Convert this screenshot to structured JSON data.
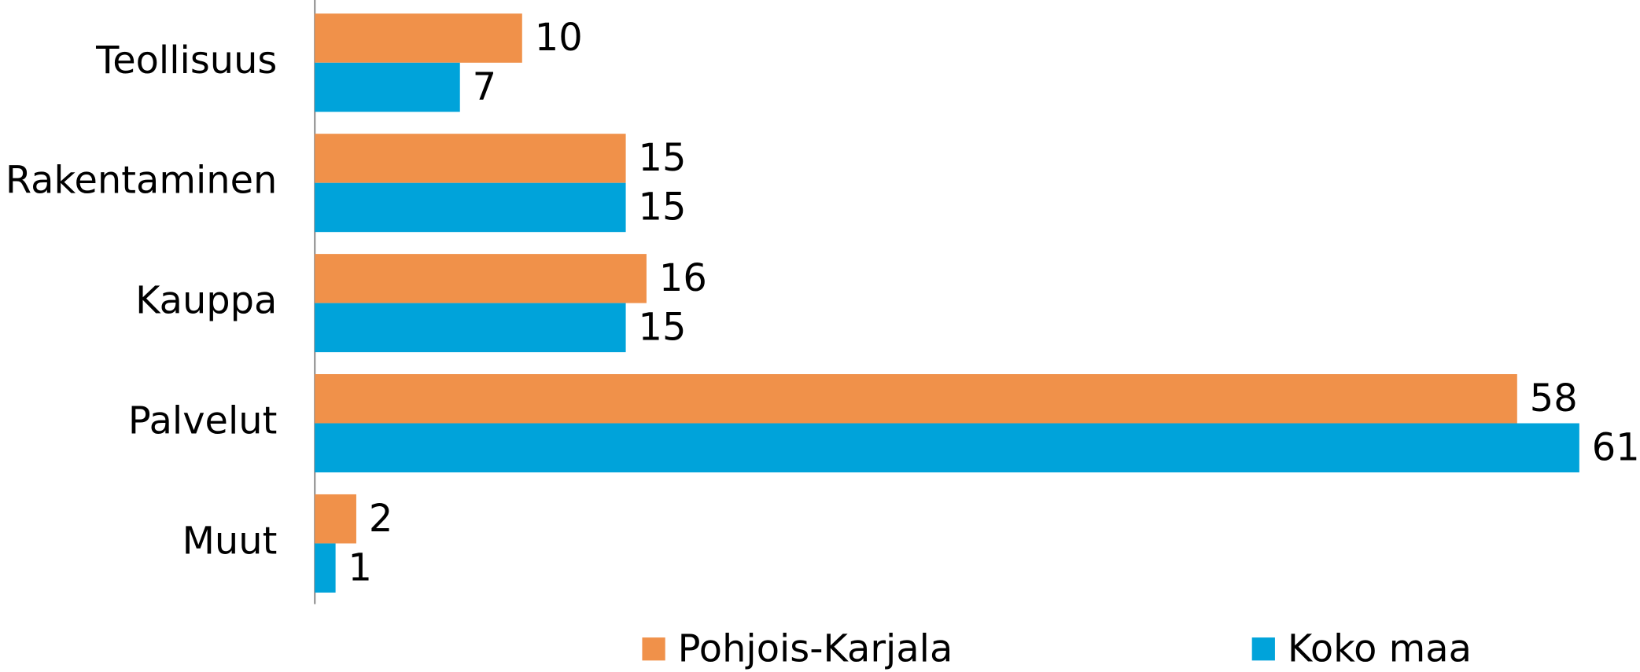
{
  "chart_data": {
    "type": "bar",
    "orientation": "horizontal",
    "categories": [
      "Teollisuus",
      "Rakentaminen",
      "Kauppa",
      "Palvelut",
      "Muut"
    ],
    "series": [
      {
        "name": "Pohjois-Karjala",
        "color": "#f0914a",
        "values": [
          10,
          15,
          16,
          58,
          2
        ]
      },
      {
        "name": "Koko maa",
        "color": "#00a3da",
        "values": [
          7,
          15,
          15,
          61,
          1
        ]
      }
    ],
    "legend": "bottom"
  }
}
